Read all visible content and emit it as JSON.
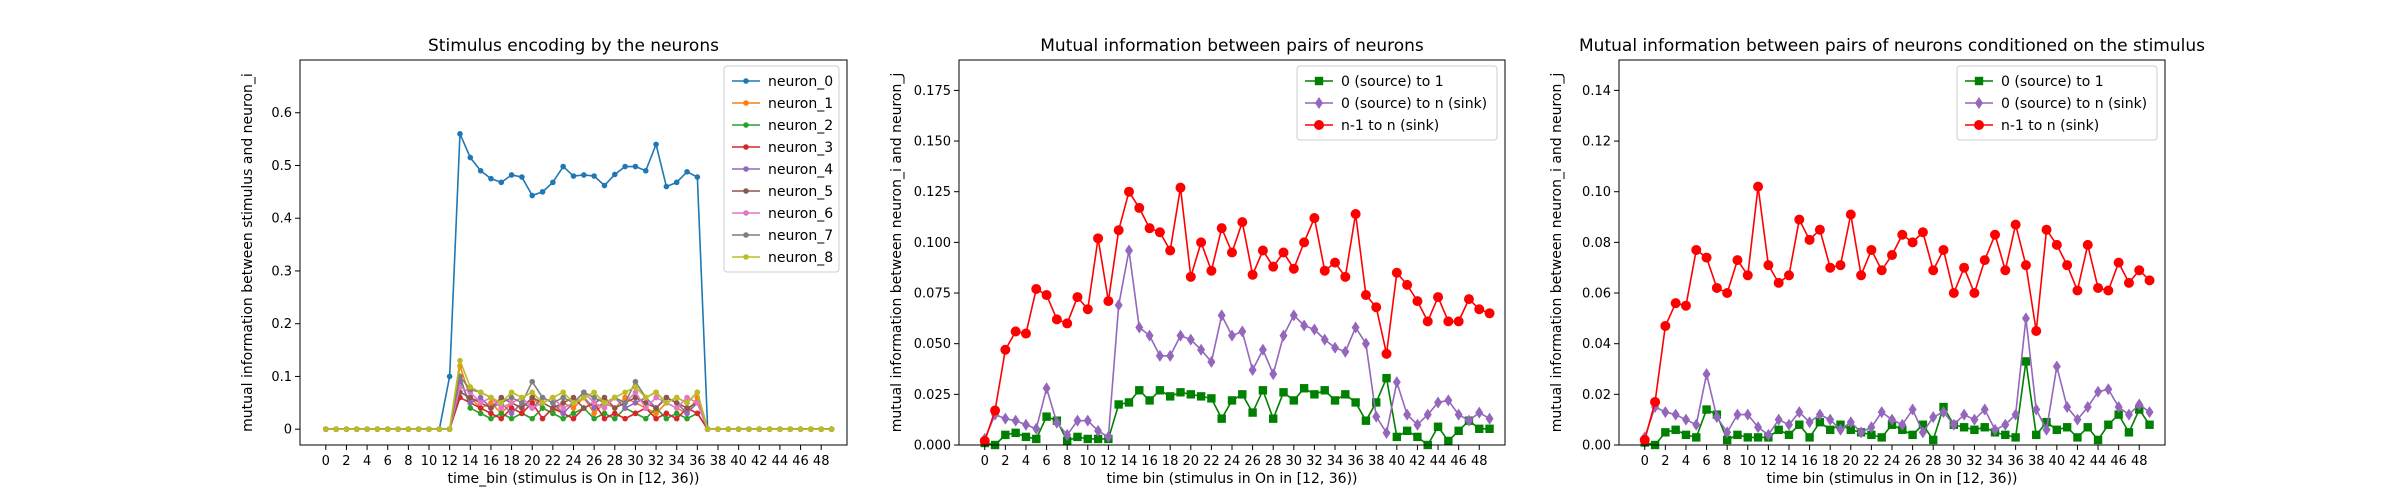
{
  "chart_data": [
    {
      "type": "line",
      "title": "Stimulus encoding by the neurons",
      "xlabel": "time_bin (stimulus is On in [12, 36))",
      "ylabel": "mutual information between stimulus and neuron_i",
      "xlim": [
        -2.5,
        50.5
      ],
      "ylim": [
        -0.03,
        0.7
      ],
      "xticks": [
        0,
        2,
        4,
        6,
        8,
        10,
        12,
        14,
        16,
        18,
        20,
        22,
        24,
        26,
        28,
        30,
        32,
        34,
        36,
        38,
        40,
        42,
        44,
        46,
        48
      ],
      "yticks": [
        0.0,
        0.1,
        0.2,
        0.3,
        0.4,
        0.5,
        0.6
      ],
      "legend": "top-right",
      "grid": false,
      "series": [
        {
          "name": "neuron_0",
          "color": "#1f77b4",
          "marker": "dot",
          "values": [
            0,
            0,
            0,
            0,
            0,
            0,
            0,
            0,
            0,
            0,
            0,
            0,
            0.1,
            0.56,
            0.515,
            0.49,
            0.475,
            0.468,
            0.482,
            0.478,
            0.443,
            0.45,
            0.468,
            0.498,
            0.48,
            0.482,
            0.48,
            0.462,
            0.483,
            0.498,
            0.498,
            0.49,
            0.54,
            0.46,
            0.468,
            0.488,
            0.478,
            0,
            0,
            0,
            0,
            0,
            0,
            0,
            0,
            0,
            0,
            0,
            0,
            0
          ]
        },
        {
          "name": "neuron_1",
          "color": "#ff7f0e",
          "marker": "dot",
          "values": [
            0,
            0,
            0,
            0,
            0,
            0,
            0,
            0,
            0,
            0,
            0,
            0,
            0,
            0.12,
            0.06,
            0.04,
            0.05,
            0.03,
            0.05,
            0.04,
            0.06,
            0.04,
            0.03,
            0.05,
            0.04,
            0.06,
            0.03,
            0.05,
            0.04,
            0.06,
            0.05,
            0.04,
            0.03,
            0.05,
            0.04,
            0.03,
            0.06,
            0,
            0,
            0,
            0,
            0,
            0,
            0,
            0,
            0,
            0,
            0,
            0,
            0
          ]
        },
        {
          "name": "neuron_2",
          "color": "#2ca02c",
          "marker": "dot",
          "values": [
            0,
            0,
            0,
            0,
            0,
            0,
            0,
            0,
            0,
            0,
            0,
            0,
            0,
            0.1,
            0.04,
            0.03,
            0.02,
            0.03,
            0.02,
            0.03,
            0.02,
            0.04,
            0.03,
            0.02,
            0.03,
            0.04,
            0.02,
            0.03,
            0.02,
            0.04,
            0.03,
            0.02,
            0.04,
            0.02,
            0.03,
            0.02,
            0.03,
            0,
            0,
            0,
            0,
            0,
            0,
            0,
            0,
            0,
            0,
            0,
            0,
            0
          ]
        },
        {
          "name": "neuron_3",
          "color": "#d62728",
          "marker": "dot",
          "values": [
            0,
            0,
            0,
            0,
            0,
            0,
            0,
            0,
            0,
            0,
            0,
            0,
            0,
            0.06,
            0.05,
            0.04,
            0.03,
            0.02,
            0.04,
            0.03,
            0.05,
            0.02,
            0.04,
            0.03,
            0.02,
            0.04,
            0.05,
            0.02,
            0.03,
            0.02,
            0.03,
            0.04,
            0.02,
            0.03,
            0.02,
            0.04,
            0.03,
            0,
            0,
            0,
            0,
            0,
            0,
            0,
            0,
            0,
            0,
            0,
            0,
            0
          ]
        },
        {
          "name": "neuron_4",
          "color": "#9467bd",
          "marker": "dot",
          "values": [
            0,
            0,
            0,
            0,
            0,
            0,
            0,
            0,
            0,
            0,
            0,
            0,
            0,
            0.09,
            0.05,
            0.06,
            0.04,
            0.05,
            0.03,
            0.05,
            0.04,
            0.06,
            0.05,
            0.03,
            0.05,
            0.06,
            0.04,
            0.05,
            0.06,
            0.04,
            0.05,
            0.06,
            0.04,
            0.06,
            0.05,
            0.03,
            0.05,
            0,
            0,
            0,
            0,
            0,
            0,
            0,
            0,
            0,
            0,
            0,
            0,
            0
          ]
        },
        {
          "name": "neuron_5",
          "color": "#8c564b",
          "marker": "dot",
          "values": [
            0,
            0,
            0,
            0,
            0,
            0,
            0,
            0,
            0,
            0,
            0,
            0,
            0,
            0.07,
            0.06,
            0.05,
            0.04,
            0.06,
            0.05,
            0.04,
            0.06,
            0.05,
            0.04,
            0.05,
            0.06,
            0.04,
            0.05,
            0.06,
            0.04,
            0.05,
            0.06,
            0.05,
            0.04,
            0.06,
            0.05,
            0.04,
            0.05,
            0,
            0,
            0,
            0,
            0,
            0,
            0,
            0,
            0,
            0,
            0,
            0,
            0
          ]
        },
        {
          "name": "neuron_6",
          "color": "#e377c2",
          "marker": "dot",
          "values": [
            0,
            0,
            0,
            0,
            0,
            0,
            0,
            0,
            0,
            0,
            0,
            0,
            0,
            0.08,
            0.07,
            0.05,
            0.06,
            0.04,
            0.05,
            0.06,
            0.04,
            0.05,
            0.06,
            0.04,
            0.05,
            0.07,
            0.05,
            0.04,
            0.06,
            0.05,
            0.07,
            0.04,
            0.06,
            0.05,
            0.04,
            0.06,
            0.05,
            0,
            0,
            0,
            0,
            0,
            0,
            0,
            0,
            0,
            0,
            0,
            0,
            0
          ]
        },
        {
          "name": "neuron_7",
          "color": "#7f7f7f",
          "marker": "dot",
          "values": [
            0,
            0,
            0,
            0,
            0,
            0,
            0,
            0,
            0,
            0,
            0,
            0,
            0,
            0.1,
            0.075,
            0.07,
            0.06,
            0.05,
            0.06,
            0.05,
            0.09,
            0.06,
            0.05,
            0.06,
            0.05,
            0.07,
            0.06,
            0.05,
            0.06,
            0.05,
            0.09,
            0.06,
            0.07,
            0.05,
            0.06,
            0.05,
            0.07,
            0,
            0,
            0,
            0,
            0,
            0,
            0,
            0,
            0,
            0,
            0,
            0,
            0
          ]
        },
        {
          "name": "neuron_8",
          "color": "#bcbd22",
          "marker": "dot",
          "values": [
            0,
            0,
            0,
            0,
            0,
            0,
            0,
            0,
            0,
            0,
            0,
            0,
            0,
            0.13,
            0.08,
            0.07,
            0.06,
            0.05,
            0.07,
            0.06,
            0.07,
            0.05,
            0.06,
            0.07,
            0.05,
            0.06,
            0.07,
            0.05,
            0.06,
            0.07,
            0.08,
            0.06,
            0.07,
            0.05,
            0.06,
            0.05,
            0.07,
            0,
            0,
            0,
            0,
            0,
            0,
            0,
            0,
            0,
            0,
            0,
            0,
            0
          ]
        }
      ]
    },
    {
      "type": "line",
      "title": "Mutual information between pairs of neurons",
      "xlabel": "time bin (stimulus in On in [12, 36))",
      "ylabel": "mutual information between neuron_i and neuron_j",
      "xlim": [
        -2.5,
        50.5
      ],
      "ylim": [
        0,
        0.19
      ],
      "xticks": [
        0,
        2,
        4,
        6,
        8,
        10,
        12,
        14,
        16,
        18,
        20,
        22,
        24,
        26,
        28,
        30,
        32,
        34,
        36,
        38,
        40,
        42,
        44,
        46,
        48
      ],
      "yticks": [
        0.0,
        0.025,
        0.05,
        0.075,
        0.1,
        0.125,
        0.15,
        0.175
      ],
      "ytick_labels": [
        "0.000",
        "0.025",
        "0.050",
        "0.075",
        "0.100",
        "0.125",
        "0.150",
        "0.175"
      ],
      "legend": "top-right",
      "grid": false,
      "series": [
        {
          "name": "0 (source) to 1",
          "color": "#008000",
          "marker": "square",
          "values": [
            0.001,
            0.0,
            0.005,
            0.006,
            0.004,
            0.003,
            0.014,
            0.012,
            0.002,
            0.004,
            0.003,
            0.003,
            0.003,
            0.02,
            0.021,
            0.027,
            0.022,
            0.027,
            0.024,
            0.026,
            0.025,
            0.024,
            0.023,
            0.013,
            0.022,
            0.025,
            0.016,
            0.027,
            0.013,
            0.026,
            0.022,
            0.028,
            0.025,
            0.027,
            0.022,
            0.025,
            0.021,
            0.012,
            0.021,
            0.033,
            0.004,
            0.007,
            0.004,
            0.0,
            0.009,
            0.002,
            0.007,
            0.012,
            0.008,
            0.008
          ]
        },
        {
          "name": "0 (source) to n (sink)",
          "color": "#9467bd",
          "marker": "diamond",
          "values": [
            0.003,
            0.015,
            0.013,
            0.012,
            0.01,
            0.008,
            0.028,
            0.011,
            0.005,
            0.012,
            0.012,
            0.007,
            0.004,
            0.069,
            0.096,
            0.058,
            0.054,
            0.044,
            0.044,
            0.054,
            0.052,
            0.047,
            0.041,
            0.064,
            0.054,
            0.056,
            0.037,
            0.047,
            0.035,
            0.054,
            0.064,
            0.059,
            0.057,
            0.052,
            0.048,
            0.046,
            0.058,
            0.05,
            0.014,
            0.006,
            0.031,
            0.015,
            0.01,
            0.015,
            0.021,
            0.022,
            0.015,
            0.012,
            0.016,
            0.013
          ]
        },
        {
          "name": "n-1 to n (sink)",
          "color": "#ff0000",
          "marker": "circle",
          "values": [
            0.002,
            0.017,
            0.047,
            0.056,
            0.055,
            0.077,
            0.074,
            0.062,
            0.06,
            0.073,
            0.067,
            0.102,
            0.071,
            0.106,
            0.125,
            0.117,
            0.107,
            0.105,
            0.096,
            0.127,
            0.083,
            0.1,
            0.086,
            0.107,
            0.095,
            0.11,
            0.084,
            0.096,
            0.088,
            0.095,
            0.087,
            0.1,
            0.112,
            0.086,
            0.09,
            0.083,
            0.114,
            0.074,
            0.068,
            0.045,
            0.085,
            0.079,
            0.071,
            0.061,
            0.073,
            0.061,
            0.061,
            0.072,
            0.067,
            0.065
          ]
        }
      ]
    },
    {
      "type": "line",
      "title": "Mutual information between pairs of neurons conditioned on the stimulus",
      "xlabel": "time bin (stimulus in On in [12, 36))",
      "ylabel": "mutual information between neuron_i and neuron_j",
      "xlim": [
        -2.5,
        50.5
      ],
      "ylim": [
        0,
        0.152
      ],
      "xticks": [
        0,
        2,
        4,
        6,
        8,
        10,
        12,
        14,
        16,
        18,
        20,
        22,
        24,
        26,
        28,
        30,
        32,
        34,
        36,
        38,
        40,
        42,
        44,
        46,
        48
      ],
      "yticks": [
        0.0,
        0.02,
        0.04,
        0.06,
        0.08,
        0.1,
        0.12,
        0.14
      ],
      "ytick_labels": [
        "0.00",
        "0.02",
        "0.04",
        "0.06",
        "0.08",
        "0.10",
        "0.12",
        "0.14"
      ],
      "legend": "top-right",
      "grid": false,
      "series": [
        {
          "name": "0 (source) to 1",
          "color": "#008000",
          "marker": "square",
          "values": [
            0.001,
            0.0,
            0.005,
            0.006,
            0.004,
            0.003,
            0.014,
            0.012,
            0.002,
            0.004,
            0.003,
            0.003,
            0.003,
            0.006,
            0.004,
            0.008,
            0.003,
            0.009,
            0.006,
            0.008,
            0.006,
            0.005,
            0.004,
            0.003,
            0.008,
            0.006,
            0.004,
            0.008,
            0.002,
            0.015,
            0.008,
            0.007,
            0.006,
            0.007,
            0.005,
            0.004,
            0.003,
            0.033,
            0.004,
            0.009,
            0.006,
            0.007,
            0.003,
            0.007,
            0.002,
            0.008,
            0.012,
            0.005,
            0.014,
            0.008
          ]
        },
        {
          "name": "0 (source) to n (sink)",
          "color": "#9467bd",
          "marker": "diamond",
          "values": [
            0.003,
            0.015,
            0.013,
            0.012,
            0.01,
            0.008,
            0.028,
            0.011,
            0.005,
            0.012,
            0.012,
            0.007,
            0.004,
            0.01,
            0.008,
            0.013,
            0.009,
            0.012,
            0.01,
            0.006,
            0.009,
            0.005,
            0.007,
            0.013,
            0.01,
            0.008,
            0.014,
            0.005,
            0.011,
            0.013,
            0.008,
            0.012,
            0.01,
            0.014,
            0.006,
            0.008,
            0.012,
            0.05,
            0.014,
            0.006,
            0.031,
            0.015,
            0.01,
            0.015,
            0.021,
            0.022,
            0.015,
            0.012,
            0.016,
            0.013
          ]
        },
        {
          "name": "n-1 to n (sink)",
          "color": "#ff0000",
          "marker": "circle",
          "values": [
            0.002,
            0.017,
            0.047,
            0.056,
            0.055,
            0.077,
            0.074,
            0.062,
            0.06,
            0.073,
            0.067,
            0.102,
            0.071,
            0.064,
            0.067,
            0.089,
            0.081,
            0.085,
            0.07,
            0.071,
            0.091,
            0.067,
            0.077,
            0.069,
            0.075,
            0.083,
            0.08,
            0.084,
            0.069,
            0.077,
            0.06,
            0.07,
            0.06,
            0.073,
            0.083,
            0.069,
            0.087,
            0.071,
            0.045,
            0.085,
            0.079,
            0.071,
            0.061,
            0.079,
            0.062,
            0.061,
            0.072,
            0.064,
            0.069,
            0.065
          ]
        }
      ]
    }
  ]
}
